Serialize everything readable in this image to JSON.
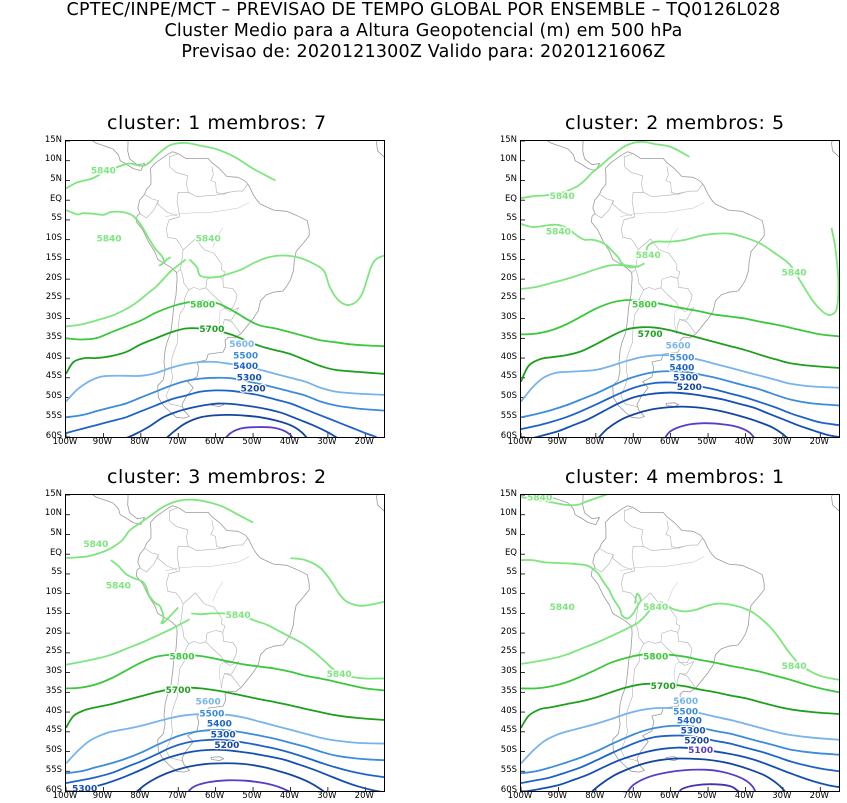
{
  "header": {
    "line1": "CPTEC/INPE/MCT – PREVISAO DE TEMPO GLOBAL POR ENSEMBLE – TQ0126L028",
    "line2": "Cluster Medio para a Altura Geopotencial (m) em 500 hPa",
    "line3": "Previsao de: 2020121300Z    Valido para: 2020121606Z"
  },
  "axes": {
    "lat_ticks": [
      "15N",
      "10N",
      "5N",
      "EQ",
      "5S",
      "10S",
      "15S",
      "20S",
      "25S",
      "30S",
      "35S",
      "40S",
      "45S",
      "50S",
      "55S",
      "60S"
    ],
    "lon_ticks": [
      "100W",
      "90W",
      "80W",
      "70W",
      "60W",
      "50W",
      "40W",
      "30W",
      "20W"
    ]
  },
  "colors": {
    "5840": "#7ee67e",
    "5800": "#3cc83c",
    "5700": "#1ea01e",
    "5600": "#78b4ec",
    "5500": "#3c8cdc",
    "5400": "#1e64c8",
    "5300": "#1450b4",
    "5200": "#1446a0",
    "5100": "#5a3cc8",
    "coast": "#9a9a9a"
  },
  "panels": [
    {
      "title": "cluster: 1   membros: 7",
      "labels": [
        "5840",
        "5840",
        "5840",
        "5800",
        "5700",
        "5600",
        "5500",
        "5400",
        "5300",
        "5200"
      ]
    },
    {
      "title": "cluster: 2   membros: 5",
      "labels": [
        "5840",
        "5840",
        "5840",
        "5840",
        "5800",
        "5700",
        "5600",
        "5500",
        "5400",
        "5300",
        "5200"
      ]
    },
    {
      "title": "cluster: 3   membros: 2",
      "labels": [
        "5840",
        "5840",
        "5840",
        "5840",
        "5800",
        "5700",
        "5600",
        "5500",
        "5400",
        "5300",
        "5200",
        "5300"
      ]
    },
    {
      "title": "cluster: 4   membros: 1",
      "labels": [
        "5840",
        "5840",
        "5840",
        "5840",
        "5800",
        "5700",
        "5600",
        "5500",
        "5400",
        "5300",
        "5200",
        "5100"
      ]
    }
  ]
}
